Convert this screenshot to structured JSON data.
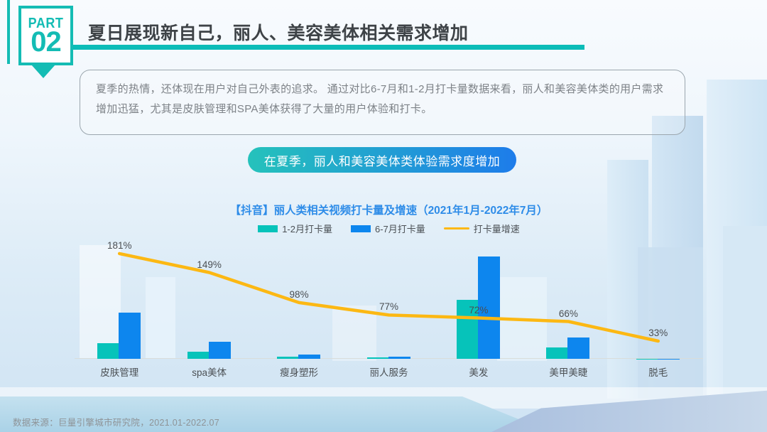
{
  "slide": {
    "part_label": "PART",
    "part_number": "02",
    "title": "夏日展现新自己，丽人、美容美体相关需求增加",
    "description": "夏季的热情，还体现在用户对自己外表的追求。 通过对比6-7月和1-2月打卡量数据来看，丽人和美容美体类的用户需求增加迅猛，尤其是皮肤管理和SPA美体获得了大量的用户体验和打卡。",
    "banner": "在夏季，丽人和美容美体类体验需求度增加",
    "footer": "数据来源：巨量引擎城市研究院，2021.01-2022.07"
  },
  "chart_data": {
    "type": "bar",
    "subtype": "grouped bars with overlaid line (combo)",
    "title": "【抖音】丽人类相关视频打卡量及增速（2021年1月-2022年7月）",
    "categories": [
      "皮肤管理",
      "spa美体",
      "瘦身塑形",
      "丽人服务",
      "美发",
      "美甲美睫",
      "脱毛"
    ],
    "series": [
      {
        "name": "1-2月打卡量",
        "type": "bar",
        "color": "#06c3ba",
        "unit": "relative volume (y-axis unlabeled)",
        "values": [
          22,
          10,
          3,
          2,
          83,
          16,
          0.5
        ]
      },
      {
        "name": "6-7月打卡量",
        "type": "bar",
        "color": "#0d86ee",
        "unit": "relative volume (y-axis unlabeled)",
        "values": [
          65,
          24,
          6,
          3,
          144,
          30,
          0.5
        ]
      },
      {
        "name": "打卡量增速",
        "type": "line",
        "color": "#fcb813",
        "unit": "%",
        "values": [
          181,
          149,
          98,
          77,
          72,
          66,
          33
        ]
      }
    ],
    "line_value_labels": [
      "181%",
      "149%",
      "98%",
      "77%",
      "72%",
      "66%",
      "33%"
    ],
    "legend_position": "top",
    "grid": false,
    "y_axis_shown": false,
    "x_axis_line": true
  },
  "colors": {
    "accent_teal": "#14bcb4",
    "bar_teal": "#06c3ba",
    "bar_blue": "#0d86ee",
    "line_yellow": "#fcb813",
    "title_gray": "#3e4347",
    "chart_title_blue": "#2e8ce8",
    "banner_gradient_start": "#25c2bb",
    "banner_gradient_end": "#1e7cea"
  }
}
